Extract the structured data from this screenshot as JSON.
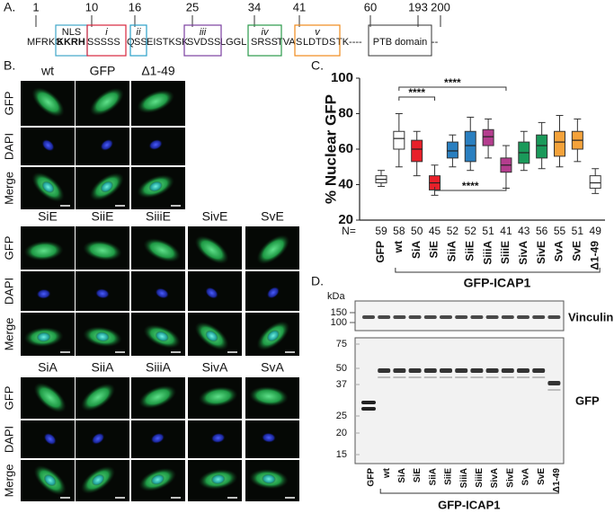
{
  "panel_a": {
    "label": "A.",
    "positions": [
      1,
      10,
      16,
      25,
      34,
      41,
      60,
      193,
      200
    ],
    "sequence": [
      {
        "text": "MFRKG"
      },
      {
        "text": "KKRH",
        "bold": true
      },
      {
        "text": "SSSSS",
        "color": "#d7263d"
      },
      {
        "text": "Q"
      },
      {
        "text": "SS",
        "color": "#2aa0c9"
      },
      {
        "text": "EISTKSK"
      },
      {
        "text": "SVDSS",
        "color": "#7b3fa0"
      },
      {
        "text": "LGGL"
      },
      {
        "text": "SRSS",
        "color": "#2a9a4a"
      },
      {
        "text": "TVA"
      },
      {
        "text": "S",
        "color": "#f08a1c"
      },
      {
        "text": "LDTD"
      },
      {
        "text": "S",
        "color": "#f08a1c"
      },
      {
        "text": "TK----"
      },
      {
        "text": "--"
      }
    ],
    "regions": [
      {
        "label": "NLS",
        "color": "#3fa7c9"
      },
      {
        "label": "i",
        "color": "#d7263d"
      },
      {
        "label": "ii",
        "color": "#2aa0c9"
      },
      {
        "label": "iii",
        "color": "#7b3fa0"
      },
      {
        "label": "iv",
        "color": "#2a9a4a"
      },
      {
        "label": "v",
        "color": "#f08a1c"
      }
    ],
    "domain": "PTB domain"
  },
  "panel_b": {
    "label": "B.",
    "blocks": [
      {
        "columns": [
          "wt",
          "GFP",
          "Δ1-49"
        ],
        "rows": [
          "GFP",
          "DAPI",
          "Merge"
        ]
      },
      {
        "columns": [
          "SiE",
          "SiiE",
          "SiiiE",
          "SivE",
          "SvE"
        ],
        "rows": [
          "GFP",
          "DAPI",
          "Merge"
        ]
      },
      {
        "columns": [
          "SiA",
          "SiiA",
          "SiiiA",
          "SivA",
          "SvA"
        ],
        "rows": [
          "GFP",
          "DAPI",
          "Merge"
        ]
      }
    ]
  },
  "chart_data": {
    "type": "box",
    "panel_label": "C.",
    "ylabel": "% Nuclear GFP",
    "categories": [
      "GFP",
      "wt",
      "SiA",
      "SiE",
      "SiiA",
      "SiiE",
      "SiiiA",
      "SiiiE",
      "SivA",
      "SivE",
      "SvA",
      "SvE",
      "Δ1-49"
    ],
    "colors": [
      "#ffffff",
      "#ffffff",
      "#e8202a",
      "#e8202a",
      "#2a7fc0",
      "#2a7fc0",
      "#b43d8e",
      "#b43d8e",
      "#1a9a5a",
      "#1a9a5a",
      "#f4a23a",
      "#f4a23a",
      "#ffffff"
    ],
    "stats": [
      {
        "min": 39,
        "q1": 41,
        "median": 43,
        "q3": 45,
        "max": 48
      },
      {
        "min": 50,
        "q1": 60,
        "median": 66,
        "q3": 70,
        "max": 80
      },
      {
        "min": 45,
        "q1": 53,
        "median": 60,
        "q3": 65,
        "max": 70
      },
      {
        "min": 34,
        "q1": 37,
        "median": 41,
        "q3": 45,
        "max": 51
      },
      {
        "min": 50,
        "q1": 55,
        "median": 59,
        "q3": 64,
        "max": 68
      },
      {
        "min": 48,
        "q1": 53,
        "median": 62,
        "q3": 70,
        "max": 78
      },
      {
        "min": 55,
        "q1": 62,
        "median": 67,
        "q3": 71,
        "max": 77
      },
      {
        "min": 38,
        "q1": 47,
        "median": 51,
        "q3": 55,
        "max": 62
      },
      {
        "min": 48,
        "q1": 52,
        "median": 58,
        "q3": 64,
        "max": 70
      },
      {
        "min": 49,
        "q1": 55,
        "median": 62,
        "q3": 68,
        "max": 75
      },
      {
        "min": 50,
        "q1": 56,
        "median": 64,
        "q3": 70,
        "max": 79
      },
      {
        "min": 53,
        "q1": 60,
        "median": 65,
        "q3": 70,
        "max": 77
      },
      {
        "min": 35,
        "q1": 38,
        "median": 41,
        "q3": 45,
        "max": 49
      }
    ],
    "n_label": "N=",
    "n": [
      59,
      58,
      50,
      45,
      52,
      52,
      51,
      41,
      43,
      56,
      55,
      51,
      49
    ],
    "annotations": [
      "****",
      "****",
      "****"
    ],
    "group_label": "GFP-ICAP1",
    "ylim": [
      20,
      100
    ],
    "yticks": [
      20,
      40,
      60,
      80,
      100
    ]
  },
  "panel_d": {
    "label": "D.",
    "unit": "kDa",
    "vinculin_markers": [
      150,
      100
    ],
    "gfp_markers": [
      75,
      50,
      37,
      25,
      20,
      15
    ],
    "vinculin_label": "Vinculin",
    "gfp_label": "GFP",
    "lanes": [
      "GFP",
      "wt",
      "SiA",
      "SiE",
      "SiiA",
      "SiiE",
      "SiiiA",
      "SiiiE",
      "SivA",
      "SivE",
      "SvA",
      "SvE",
      "Δ1-49"
    ],
    "group_label": "GFP-ICAP1"
  }
}
